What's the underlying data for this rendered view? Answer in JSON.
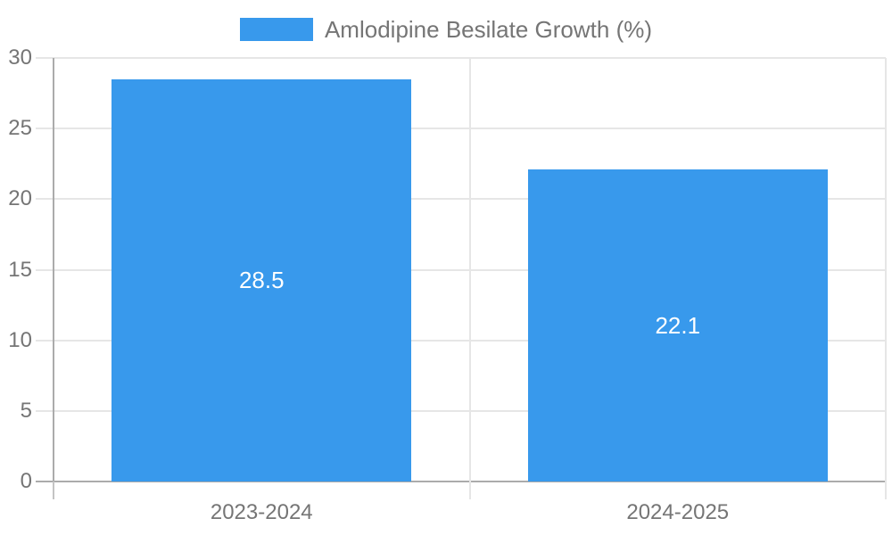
{
  "legend": {
    "label": "Amlodipine Besilate Growth (%)"
  },
  "colors": {
    "bar": "#3899EC",
    "grid": "#e6e6e6",
    "axis": "#ababab",
    "tick_text": "#757575",
    "data_label": "#ffffff",
    "background": "#ffffff"
  },
  "chart_data": {
    "type": "bar",
    "title": "",
    "categories": [
      "2023-2024",
      "2024-2025"
    ],
    "series": [
      {
        "name": "Amlodipine Besilate Growth (%)",
        "values": [
          28.5,
          22.1
        ]
      }
    ],
    "data_labels": [
      "28.5",
      "22.1"
    ],
    "xlabel": "",
    "ylabel": "",
    "ylim": [
      0,
      30
    ],
    "y_ticks": [
      0,
      5,
      10,
      15,
      20,
      25,
      30
    ],
    "grid": true,
    "legend_position": "top",
    "data_label_position": "center"
  }
}
